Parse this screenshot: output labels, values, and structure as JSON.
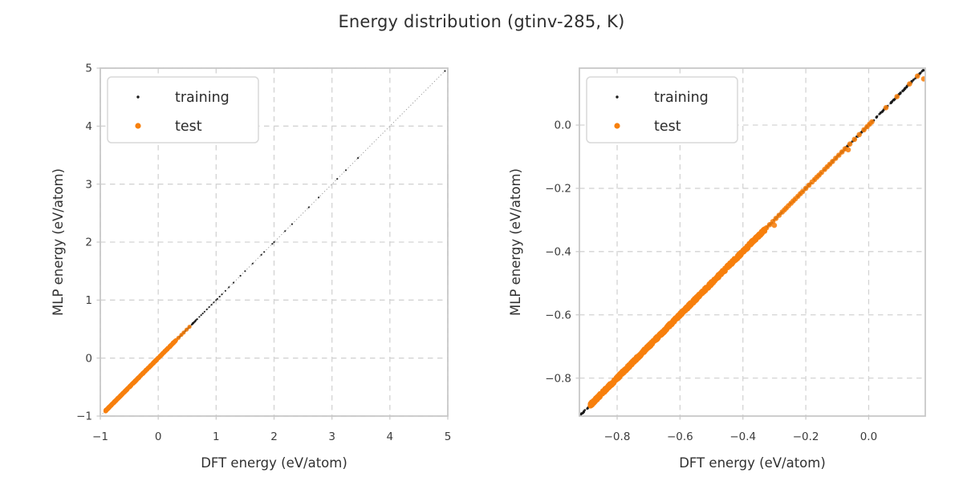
{
  "figure": {
    "title": "Energy distribution (gtinv-285, K)"
  },
  "chart_data": [
    {
      "type": "scatter",
      "title": "",
      "xlabel": "DFT energy (eV/atom)",
      "ylabel": "MLP energy (eV/atom)",
      "xlim": [
        -1.0,
        5.0
      ],
      "ylim": [
        -1.0,
        5.0
      ],
      "xticks": [
        -1,
        0,
        1,
        2,
        3,
        4,
        5
      ],
      "yticks": [
        -1,
        0,
        1,
        2,
        3,
        4,
        5
      ],
      "tick_decimals": 0,
      "grid": "dashed",
      "identity_line": true,
      "legend": {
        "position": "upper left",
        "entries": [
          "training",
          "test"
        ]
      },
      "series": [
        {
          "name": "training",
          "color": "#1a1a1a",
          "marker_px": 2.2,
          "dense_segments": [
            {
              "from": -0.92,
              "to": 0.68,
              "count": 300,
              "bias": 1.2,
              "jitter": 0.008
            }
          ],
          "points": [
            0.71,
            0.74,
            0.77,
            0.8,
            0.84,
            0.88,
            0.92,
            0.96,
            1.0,
            1.02,
            1.06,
            1.1,
            1.16,
            1.22,
            1.3,
            1.42,
            1.5,
            1.63,
            1.78,
            1.83,
            1.97,
            2.0,
            2.19,
            2.31,
            2.6,
            2.77,
            3.09,
            3.24,
            3.45,
            4.95
          ]
        },
        {
          "name": "test",
          "color": "#f7800d",
          "marker_px": 5.2,
          "dense_segments": [
            {
              "from": -0.91,
              "to": 0.3,
              "count": 600,
              "bias": 1.5,
              "jitter": 0.01
            }
          ],
          "points": [
            0.31,
            0.35,
            0.4,
            0.44,
            0.49,
            0.54
          ]
        }
      ]
    },
    {
      "type": "scatter",
      "title": "",
      "xlabel": "DFT energy (eV/atom)",
      "ylabel": "MLP energy (eV/atom)",
      "xlim": [
        -0.92,
        0.18
      ],
      "ylim": [
        -0.92,
        0.18
      ],
      "xticks": [
        -0.8,
        -0.6,
        -0.4,
        -0.2,
        0.0
      ],
      "yticks": [
        0.0,
        -0.2,
        -0.4,
        -0.6,
        -0.8
      ],
      "tick_decimals": 1,
      "grid": "dashed",
      "identity_line": true,
      "legend": {
        "position": "upper left",
        "entries": [
          "training",
          "test"
        ]
      },
      "series": [
        {
          "name": "training",
          "color": "#1a1a1a",
          "marker_px": 2.8,
          "dense_segments": [
            {
              "from": -0.92,
              "to": 0.175,
              "count": 650,
              "bias": 1.0,
              "jitter": 0.002
            }
          ],
          "points": []
        },
        {
          "name": "test",
          "color": "#f7800d",
          "marker_px": 6.6,
          "dense_segments": [
            {
              "from": -0.885,
              "to": -0.33,
              "count": 900,
              "bias": 1.25,
              "jitter": 0.005
            }
          ],
          "points": [
            -0.325,
            -0.315,
            -0.305,
            -0.295,
            -0.285,
            -0.275,
            -0.268,
            -0.262,
            -0.255,
            -0.247,
            -0.24,
            -0.233,
            -0.225,
            -0.217,
            -0.21,
            -0.2,
            -0.19,
            -0.18,
            -0.172,
            -0.165,
            -0.158,
            -0.15,
            -0.14,
            -0.132,
            -0.124,
            -0.115,
            -0.105,
            -0.095,
            -0.085,
            -0.075,
            -0.06,
            -0.045,
            -0.03,
            -0.015,
            -0.005,
            0.003,
            0.01,
            0.055,
            0.09,
            0.13,
            0.155,
            [
              -0.3,
              -0.317
            ],
            [
              -0.065,
              -0.078
            ],
            [
              0.175,
              0.146
            ]
          ]
        }
      ]
    }
  ]
}
